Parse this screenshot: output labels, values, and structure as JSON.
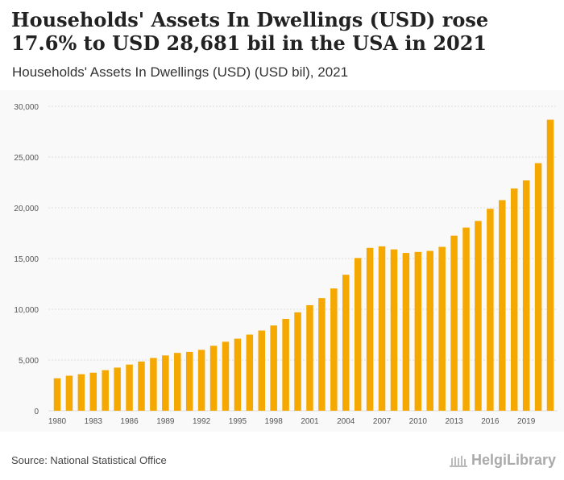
{
  "header": {
    "title": "Households' Assets In Dwellings (USD) rose 17.6% to USD 28,681 bil in the USA in 2021",
    "subtitle": "Households' Assets In Dwellings (USD) (USD bil), 2021"
  },
  "footer": {
    "source": "Source: National Statistical Office",
    "logo_text": "HelgiLibrary"
  },
  "colors": {
    "bar": "#f5a800",
    "grid": "#dddddd",
    "axis_text": "#555555"
  },
  "chart_data": {
    "type": "bar",
    "title": "Households' Assets In Dwellings (USD) (USD bil), 2021",
    "xlabel": "",
    "ylabel": "",
    "ylim": [
      0,
      30000
    ],
    "yticks": [
      0,
      5000,
      10000,
      15000,
      20000,
      25000,
      30000
    ],
    "ytick_labels": [
      "0",
      "5,000",
      "10,000",
      "15,000",
      "20,000",
      "25,000",
      "30,000"
    ],
    "x_tick_labels": [
      "1980",
      "1983",
      "1986",
      "1989",
      "1992",
      "1995",
      "1998",
      "2001",
      "2004",
      "2007",
      "2010",
      "2013",
      "2016",
      "2019"
    ],
    "categories": [
      "1980",
      "1981",
      "1982",
      "1983",
      "1984",
      "1985",
      "1986",
      "1987",
      "1988",
      "1989",
      "1990",
      "1991",
      "1992",
      "1993",
      "1994",
      "1995",
      "1996",
      "1997",
      "1998",
      "1999",
      "2000",
      "2001",
      "2002",
      "2003",
      "2004",
      "2005",
      "2006",
      "2007",
      "2008",
      "2009",
      "2010",
      "2011",
      "2012",
      "2013",
      "2014",
      "2015",
      "2016",
      "2017",
      "2018",
      "2019",
      "2020",
      "2021"
    ],
    "values": [
      3200,
      3450,
      3600,
      3750,
      4000,
      4250,
      4550,
      4850,
      5200,
      5450,
      5700,
      5800,
      6000,
      6400,
      6800,
      7100,
      7500,
      7900,
      8400,
      9050,
      9700,
      10400,
      11100,
      12050,
      13400,
      15050,
      16050,
      16200,
      15900,
      15550,
      15650,
      15750,
      16150,
      17250,
      18050,
      18700,
      19900,
      20750,
      21900,
      22700,
      24400,
      28681
    ],
    "grid": true,
    "legend": "none"
  }
}
